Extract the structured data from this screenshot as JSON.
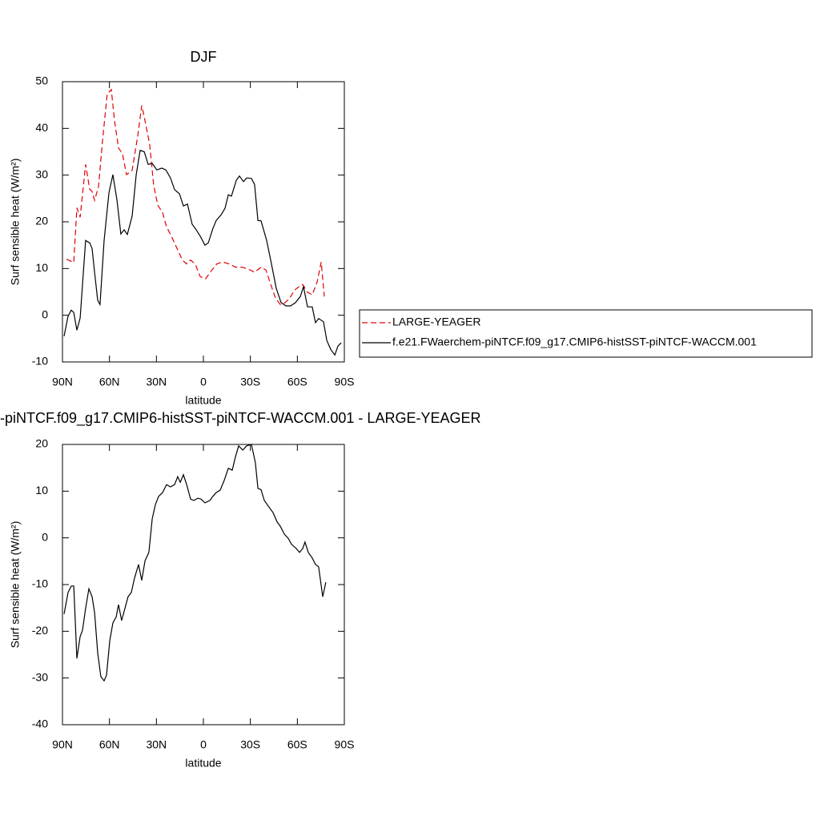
{
  "chart_data": [
    {
      "type": "line",
      "title": "DJF",
      "xlabel": "latitude",
      "ylabel": "Surf sensible heat (W/m²)",
      "xlim": [
        90,
        -90
      ],
      "xticks": [
        {
          "value": 90,
          "label": "90N"
        },
        {
          "value": 60,
          "label": "60N"
        },
        {
          "value": 30,
          "label": "30N"
        },
        0,
        {
          "value": -30,
          "label": "30S"
        },
        {
          "value": -60,
          "label": "60S"
        },
        {
          "value": -90,
          "label": "90S"
        }
      ],
      "ylim": [
        -10,
        50
      ],
      "yticks": [
        -10,
        0,
        10,
        20,
        30,
        40,
        50
      ],
      "legend": "right",
      "series": [
        {
          "name": "LARGE-YEAGER",
          "color": "#e00000",
          "dashed": true,
          "x": [
            87.4,
            82.8,
            80.8,
            78.7,
            75.2,
            72.6,
            71.1,
            69.5,
            67.0,
            64.4,
            61.4,
            58.8,
            56.8,
            54.2,
            51.7,
            49.1,
            45.5,
            42.0,
            39.4,
            37.4,
            34.3,
            31.8,
            29.2,
            26.1,
            23.6,
            20.0,
            16.4,
            13.4,
            10.8,
            8.3,
            5.2,
            2.1,
            -1.4,
            -5.0,
            -8.6,
            -12.3,
            -16.4,
            -20.5,
            -24.6,
            -28.6,
            -32.7,
            -36.8,
            -39.9,
            -43.0,
            -46.0,
            -49.1,
            -52.2,
            -55.2,
            -58.3,
            -60.9,
            -63.4,
            -66.5,
            -69.5,
            -72.6,
            -75.2,
            -77.2
          ],
          "values": [
            12.0,
            11.3,
            23.0,
            21.0,
            32.3,
            27.0,
            26.5,
            24.6,
            27.5,
            37.5,
            47.4,
            48.3,
            41.8,
            35.8,
            34.6,
            30.1,
            31.0,
            38.3,
            44.9,
            41.8,
            36.6,
            28.0,
            23.6,
            22.0,
            19.0,
            16.6,
            14.0,
            11.8,
            11.0,
            11.8,
            11.0,
            8.3,
            7.8,
            9.5,
            11.0,
            11.4,
            11.0,
            10.3,
            10.3,
            9.9,
            9.2,
            10.3,
            9.7,
            6.6,
            3.7,
            2.3,
            2.7,
            3.7,
            5.4,
            6.1,
            6.6,
            4.9,
            4.4,
            7.1,
            11.4,
            4.0
          ]
        },
        {
          "name": "f.e21.FWaerchem-piNTCF.f09_g17.CMIP6-histSST-piNTCF-WACCM.001",
          "color": "#000000",
          "dashed": false,
          "x": [
            89.0,
            86.4,
            84.4,
            82.8,
            80.8,
            78.7,
            75.2,
            72.6,
            71.1,
            69.5,
            67.5,
            66.0,
            63.4,
            60.3,
            57.8,
            55.2,
            52.7,
            50.6,
            48.6,
            45.5,
            42.9,
            40.4,
            37.8,
            35.3,
            32.7,
            29.7,
            26.6,
            24.0,
            21.0,
            18.4,
            15.3,
            12.8,
            10.2,
            7.2,
            4.6,
            2.0,
            -1.0,
            -3.1,
            -6.1,
            -8.2,
            -11.3,
            -13.8,
            -15.9,
            -17.9,
            -21.0,
            -23.0,
            -25.6,
            -27.6,
            -30.7,
            -32.7,
            -34.8,
            -36.8,
            -40.4,
            -43.5,
            -46.5,
            -49.6,
            -52.7,
            -55.7,
            -58.8,
            -61.9,
            -63.9,
            -66.5,
            -69.5,
            -71.6,
            -73.6,
            -76.7,
            -78.8,
            -81.3,
            -83.9,
            -85.9,
            -88.0
          ],
          "values": [
            -4.5,
            -0.2,
            1.1,
            0.6,
            -3.2,
            -0.6,
            16.0,
            15.5,
            14.3,
            9.2,
            3.2,
            2.3,
            16.0,
            26.3,
            30.1,
            24.6,
            17.4,
            18.3,
            17.3,
            21.2,
            30.1,
            35.3,
            35.0,
            32.3,
            32.5,
            31.1,
            31.5,
            31.1,
            29.4,
            26.9,
            26.0,
            23.4,
            23.8,
            19.5,
            18.3,
            16.9,
            15.0,
            15.5,
            18.6,
            20.3,
            21.5,
            22.9,
            25.8,
            25.5,
            28.9,
            29.8,
            28.6,
            29.4,
            29.3,
            28.0,
            20.3,
            20.2,
            16.0,
            10.9,
            5.8,
            2.7,
            2.0,
            2.0,
            2.7,
            4.0,
            6.1,
            1.8,
            1.8,
            -1.6,
            -0.7,
            -1.4,
            -5.4,
            -7.3,
            -8.5,
            -6.6,
            -5.9
          ]
        }
      ]
    },
    {
      "type": "line",
      "title": "-piNTCF.f09_g17.CMIP6-histSST-piNTCF-WACCM.001 - LARGE-YEAGER",
      "xlabel": "latitude",
      "ylabel": "Surf sensible heat (W/m²)",
      "xlim": [
        90,
        -90
      ],
      "xticks": [
        {
          "value": 90,
          "label": "90N"
        },
        {
          "value": 60,
          "label": "60N"
        },
        {
          "value": 30,
          "label": "30N"
        },
        0,
        {
          "value": -30,
          "label": "30S"
        },
        {
          "value": -60,
          "label": "60S"
        },
        {
          "value": -90,
          "label": "90S"
        }
      ],
      "ylim": [
        -40,
        20
      ],
      "yticks": [
        -40,
        -30,
        -20,
        -10,
        0,
        10,
        20
      ],
      "series": [
        {
          "color": "#000000",
          "dashed": false,
          "x": [
            89.0,
            86.4,
            84.4,
            82.8,
            80.8,
            78.7,
            77.2,
            75.2,
            73.1,
            71.1,
            69.5,
            67.5,
            65.5,
            63.4,
            61.9,
            59.8,
            57.8,
            55.7,
            54.2,
            52.2,
            50.1,
            48.1,
            46.0,
            44.0,
            41.4,
            39.4,
            37.3,
            34.8,
            32.7,
            30.7,
            28.6,
            26.1,
            23.5,
            21.0,
            18.4,
            16.4,
            14.8,
            12.8,
            10.7,
            8.2,
            6.1,
            3.6,
            1.5,
            -1.0,
            -4.1,
            -6.1,
            -8.2,
            -10.7,
            -13.3,
            -15.9,
            -18.4,
            -20.5,
            -22.5,
            -25.1,
            -27.6,
            -30.7,
            -33.2,
            -34.8,
            -36.8,
            -38.9,
            -41.9,
            -44.5,
            -47.1,
            -49.1,
            -51.7,
            -54.2,
            -56.3,
            -59.3,
            -61.4,
            -63.4,
            -64.9,
            -67.0,
            -69.5,
            -71.6,
            -73.6,
            -76.2,
            -78.2
          ],
          "values": [
            -16.3,
            -11.7,
            -10.3,
            -10.3,
            -25.8,
            -21.1,
            -19.8,
            -15.1,
            -10.9,
            -12.6,
            -16.0,
            -24.6,
            -29.7,
            -30.6,
            -29.4,
            -22.0,
            -18.2,
            -16.9,
            -14.3,
            -17.7,
            -15.1,
            -12.6,
            -11.7,
            -8.6,
            -5.7,
            -9.1,
            -4.9,
            -3.1,
            4.1,
            7.1,
            8.9,
            9.7,
            11.4,
            10.9,
            11.4,
            13.1,
            11.9,
            13.5,
            11.4,
            8.3,
            8.0,
            8.5,
            8.3,
            7.5,
            8.0,
            8.9,
            9.7,
            10.2,
            12.3,
            14.9,
            14.5,
            17.4,
            19.7,
            18.8,
            19.7,
            20.0,
            16.1,
            10.6,
            10.3,
            8.0,
            6.6,
            5.4,
            3.4,
            2.5,
            0.8,
            -0.1,
            -1.4,
            -2.3,
            -3.1,
            -2.3,
            -0.9,
            -3.1,
            -4.3,
            -5.7,
            -6.2,
            -12.6,
            -9.5
          ]
        }
      ]
    }
  ]
}
